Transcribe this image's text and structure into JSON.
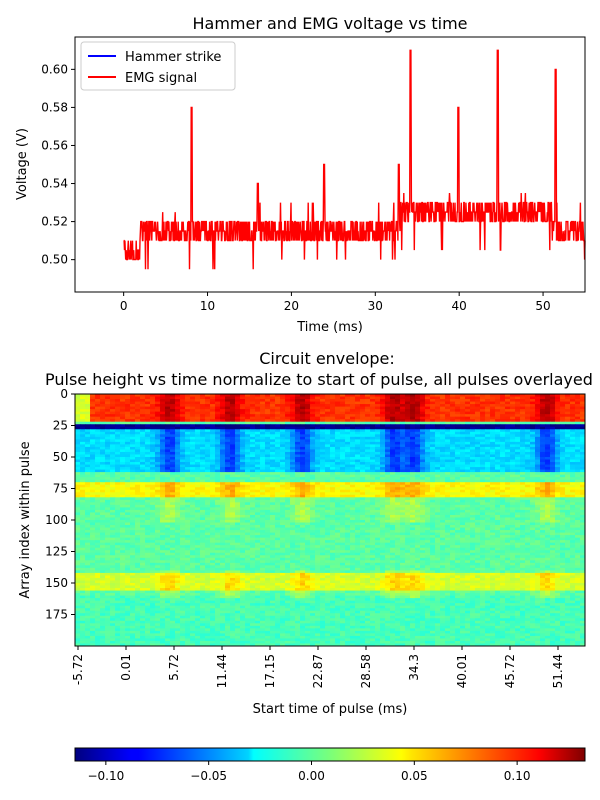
{
  "chart_data": [
    {
      "type": "line",
      "title": "Hammer and EMG voltage vs time",
      "xlabel": "Time (ms)",
      "ylabel": "Voltage (V)",
      "xlim": [
        -5.8,
        55
      ],
      "ylim": [
        0.483,
        0.617
      ],
      "xticks": [
        0,
        10,
        20,
        30,
        40,
        50
      ],
      "yticks": [
        0.5,
        0.52,
        0.54,
        0.56,
        0.58,
        0.6
      ],
      "ytick_labels": [
        "0.50",
        "0.52",
        "0.54",
        "0.56",
        "0.58",
        "0.60"
      ],
      "legend": "top-left",
      "series": [
        {
          "name": "Hammer strike",
          "color": "#0000ff",
          "values": []
        },
        {
          "name": "EMG signal",
          "color": "#ff0000",
          "x": [
            0,
            1,
            2,
            3,
            4,
            5,
            6,
            7,
            7.8,
            8.1,
            9,
            10,
            11,
            12,
            13,
            14,
            15,
            15.8,
            16,
            17,
            18,
            19,
            20,
            21,
            22,
            23,
            23.9,
            24.2,
            25,
            26,
            27,
            28,
            29,
            30,
            31,
            32,
            32.8,
            33.2,
            34,
            34.2,
            35,
            36,
            37,
            38,
            39,
            39.9,
            40.2,
            41,
            42,
            43,
            44,
            44.6,
            45,
            46,
            47,
            48,
            49,
            50,
            51,
            51.5,
            52,
            53,
            54,
            55
          ],
          "y": [
            0.51,
            0.505,
            0.51,
            0.515,
            0.51,
            0.515,
            0.515,
            0.515,
            0.52,
            0.58,
            0.515,
            0.515,
            0.515,
            0.515,
            0.515,
            0.51,
            0.51,
            0.515,
            0.54,
            0.51,
            0.515,
            0.515,
            0.515,
            0.515,
            0.515,
            0.515,
            0.55,
            0.52,
            0.515,
            0.52,
            0.52,
            0.52,
            0.52,
            0.52,
            0.52,
            0.52,
            0.55,
            0.52,
            0.525,
            0.61,
            0.525,
            0.525,
            0.525,
            0.525,
            0.525,
            0.58,
            0.525,
            0.525,
            0.525,
            0.525,
            0.525,
            0.61,
            0.525,
            0.525,
            0.525,
            0.525,
            0.525,
            0.525,
            0.525,
            0.6,
            0.515,
            0.515,
            0.515,
            0.515
          ]
        }
      ]
    },
    {
      "type": "heatmap",
      "title": "Circuit envelope:",
      "subtitle": "Pulse height vs time normalize to start of pulse, all pulses overlayed",
      "xlabel": "Start time of pulse (ms)",
      "ylabel": "Array index within pulse",
      "xtick_labels": [
        "-5.72",
        "0.01",
        "5.72",
        "11.44",
        "17.15",
        "22.87",
        "28.58",
        "34.3",
        "40.01",
        "45.72",
        "51.44"
      ],
      "yticks": [
        0,
        25,
        50,
        75,
        100,
        125,
        150,
        175
      ],
      "ylim": [
        0,
        199
      ],
      "colormap": "jet",
      "colorbar": {
        "orientation": "horizontal",
        "range": [
          -0.115,
          0.133
        ],
        "ticks": [
          -0.1,
          -0.05,
          0.0,
          0.05,
          0.1
        ],
        "tick_labels": [
          "−0.10",
          "−0.05",
          "0.00",
          "0.05",
          "0.10"
        ]
      },
      "bands": [
        {
          "rows": [
            0,
            20
          ],
          "value": 0.09
        },
        {
          "rows": [
            24,
            26
          ],
          "value": -0.11
        },
        {
          "rows": [
            28,
            60
          ],
          "value": -0.03
        },
        {
          "rows": [
            70,
            80
          ],
          "value": 0.04
        },
        {
          "rows": [
            80,
            140
          ],
          "value": 0.0
        },
        {
          "rows": [
            140,
            155
          ],
          "value": 0.03
        },
        {
          "rows": [
            160,
            199
          ],
          "value": -0.005
        }
      ]
    }
  ]
}
